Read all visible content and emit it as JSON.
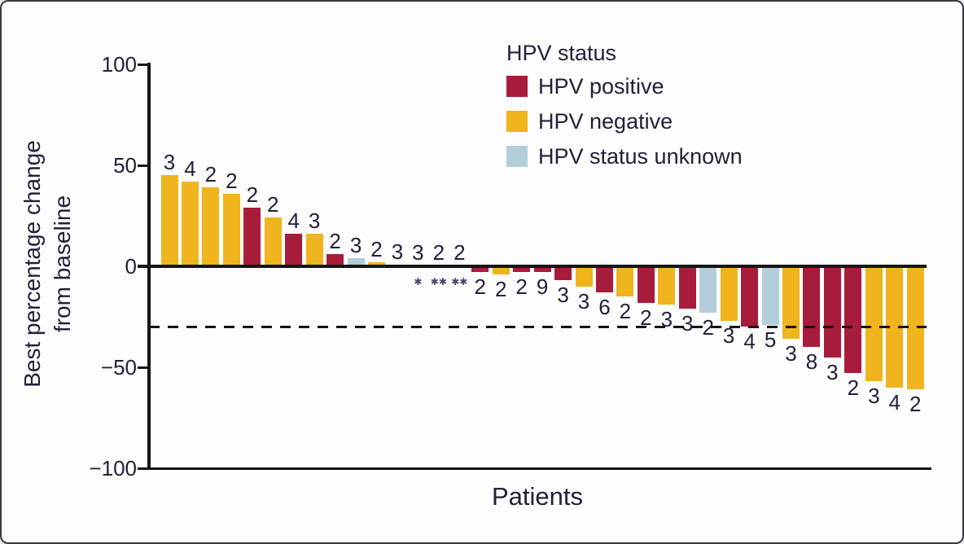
{
  "colors": {
    "positive": "#A81C3B",
    "negative": "#EFB41E",
    "unknown": "#B3CEDA",
    "marker": "#4A4370",
    "text": "#232039",
    "axis": "#151515"
  },
  "chart_data": {
    "type": "bar",
    "variant": "waterfall",
    "ylabel_line1": "Best percentage change",
    "ylabel_line2": "from baseline",
    "xlabel": "Patients",
    "ylim": [
      -100,
      100
    ],
    "grid": false,
    "yticks": [
      {
        "value": 100,
        "label": "100"
      },
      {
        "value": 50,
        "label": "50"
      },
      {
        "value": 0,
        "label": "0"
      },
      {
        "value": -50,
        "label": "−50"
      },
      {
        "value": -100,
        "label": "−100"
      }
    ],
    "reference_line": {
      "value": -30,
      "style": "dashed"
    },
    "legend": {
      "title": "HPV status",
      "position": "top-center",
      "items": [
        {
          "label": "HPV positive",
          "status": "positive"
        },
        {
          "label": "HPV negative",
          "status": "negative"
        },
        {
          "label": "HPV status unknown",
          "status": "unknown"
        }
      ]
    },
    "bars": [
      {
        "hpv": "negative",
        "value": 45,
        "label": "3"
      },
      {
        "hpv": "negative",
        "value": 42,
        "label": "4"
      },
      {
        "hpv": "negative",
        "value": 39,
        "label": "2"
      },
      {
        "hpv": "negative",
        "value": 36,
        "label": "2"
      },
      {
        "hpv": "positive",
        "value": 29,
        "label": "2"
      },
      {
        "hpv": "negative",
        "value": 24,
        "label": "2"
      },
      {
        "hpv": "positive",
        "value": 16,
        "label": "4"
      },
      {
        "hpv": "negative",
        "value": 16,
        "label": "3"
      },
      {
        "hpv": "positive",
        "value": 6,
        "label": "2"
      },
      {
        "hpv": "unknown",
        "value": 4,
        "label": "3"
      },
      {
        "hpv": "negative",
        "value": 2,
        "label": "2"
      },
      {
        "hpv": "positive",
        "value": 1,
        "label": "3"
      },
      {
        "hpv": "not-shown",
        "value": 0,
        "label": "3",
        "marker": "✱"
      },
      {
        "hpv": "not-shown",
        "value": 0,
        "label": "2",
        "marker": "✱✱"
      },
      {
        "hpv": "not-shown",
        "value": 0,
        "label": "2",
        "marker": "✱✱"
      },
      {
        "hpv": "positive",
        "value": -3,
        "label": "2"
      },
      {
        "hpv": "negative",
        "value": -4,
        "label": "2"
      },
      {
        "hpv": "positive",
        "value": -3,
        "label": "2"
      },
      {
        "hpv": "positive",
        "value": -3,
        "label": "9"
      },
      {
        "hpv": "positive",
        "value": -7,
        "label": "3"
      },
      {
        "hpv": "negative",
        "value": -10,
        "label": "3"
      },
      {
        "hpv": "positive",
        "value": -13,
        "label": "6"
      },
      {
        "hpv": "negative",
        "value": -15,
        "label": "2"
      },
      {
        "hpv": "positive",
        "value": -18,
        "label": "2"
      },
      {
        "hpv": "negative",
        "value": -19,
        "label": "3"
      },
      {
        "hpv": "positive",
        "value": -21,
        "label": "3"
      },
      {
        "hpv": "unknown",
        "value": -23,
        "label": "2"
      },
      {
        "hpv": "negative",
        "value": -27,
        "label": "3"
      },
      {
        "hpv": "positive",
        "value": -30,
        "label": "4"
      },
      {
        "hpv": "unknown",
        "value": -29,
        "label": "5"
      },
      {
        "hpv": "negative",
        "value": -36,
        "label": "3"
      },
      {
        "hpv": "positive",
        "value": -40,
        "label": "8"
      },
      {
        "hpv": "positive",
        "value": -45,
        "label": "3"
      },
      {
        "hpv": "positive",
        "value": -53,
        "label": "2"
      },
      {
        "hpv": "negative",
        "value": -57,
        "label": "3"
      },
      {
        "hpv": "negative",
        "value": -60,
        "label": "4"
      },
      {
        "hpv": "negative",
        "value": -61,
        "label": "2"
      }
    ]
  }
}
